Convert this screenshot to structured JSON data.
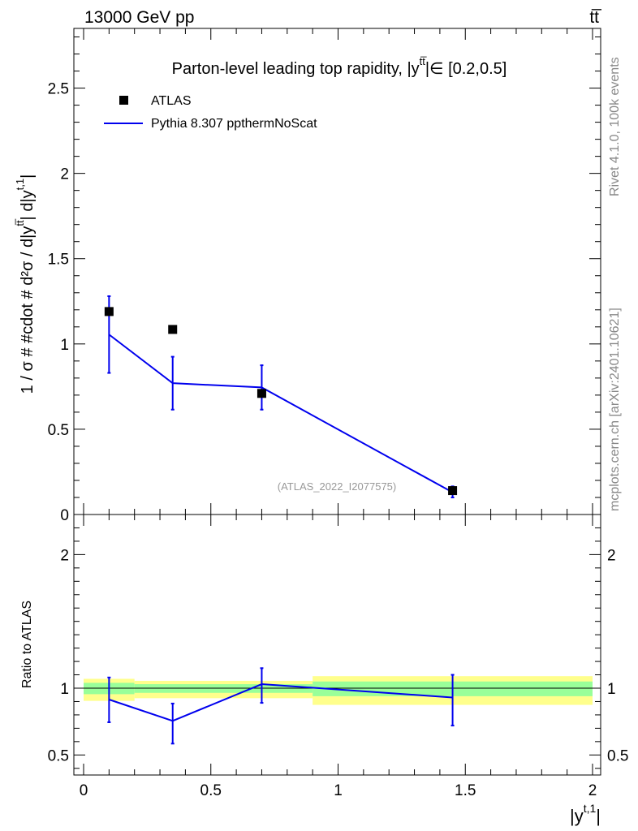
{
  "header": {
    "left_label": "13000 GeV pp",
    "right_label": "tt̅"
  },
  "side_labels": {
    "rivet": "Rivet 4.1.0,  100k events",
    "mcplots": "mcplots.cern.ch [arXiv:2401.10621]"
  },
  "chart_data": [
    {
      "panel": "main",
      "type": "line",
      "title_prefix": "Parton-level leading top rapidity, |y",
      "title_sup": "tt̅",
      "title_suffix": "|∈ [0.2,0.5]",
      "ylabel_main": "1 / σ # #cdot # d²σ / d|y",
      "ylabel_sup1": "tt̅",
      "ylabel_mid": "| d|y",
      "ylabel_sup2": "t,1",
      "ylabel_end": "|",
      "watermark": "(ATLAS_2022_I2077575)",
      "xlim": [
        0,
        2
      ],
      "ylim": [
        0,
        2.85
      ],
      "yticks": [
        {
          "v": 0,
          "label": "0"
        },
        {
          "v": 0.5,
          "label": "0.5"
        },
        {
          "v": 1,
          "label": "1"
        },
        {
          "v": 1.5,
          "label": "1.5"
        },
        {
          "v": 2,
          "label": "2"
        },
        {
          "v": 2.5,
          "label": "2.5"
        }
      ],
      "legend": [
        {
          "name": "ATLAS",
          "style": "marker"
        },
        {
          "name": "Pythia 8.307 ppthermNoScat",
          "style": "line"
        }
      ],
      "series": [
        {
          "name": "ATLAS",
          "x": [
            0.1,
            0.35,
            0.7,
            1.45
          ],
          "values": [
            1.19,
            1.085,
            0.71,
            0.14
          ],
          "color": "#000000"
        },
        {
          "name": "Pythia 8.307 ppthermNoScat",
          "x": [
            0.1,
            0.35,
            0.7,
            1.45
          ],
          "values": [
            1.055,
            0.77,
            0.745,
            0.13
          ],
          "err_low": [
            0.83,
            0.615,
            0.615,
            0.1
          ],
          "err_high": [
            1.28,
            0.925,
            0.875,
            0.165
          ],
          "color": "#0000ee"
        }
      ]
    },
    {
      "panel": "ratio",
      "type": "line",
      "ylabel": "Ratio to ATLAS",
      "xlabel": "|y",
      "xlabel_sup": "t,1",
      "xlabel_end": "|",
      "xlim": [
        0,
        2
      ],
      "ylim": [
        0.35,
        2.3
      ],
      "xticks": [
        {
          "v": 0,
          "label": "0"
        },
        {
          "v": 0.5,
          "label": "0.5"
        },
        {
          "v": 1,
          "label": "1"
        },
        {
          "v": 1.5,
          "label": "1.5"
        },
        {
          "v": 2,
          "label": "2"
        }
      ],
      "yticks": [
        {
          "v": 0.5,
          "label": "0.5"
        },
        {
          "v": 1,
          "label": "1"
        },
        {
          "v": 2,
          "label": "2"
        }
      ],
      "bands": [
        {
          "x0": 0.0,
          "x1": 0.2,
          "yellow": [
            0.905,
            1.07
          ],
          "green": [
            0.955,
            1.04
          ]
        },
        {
          "x0": 0.2,
          "x1": 0.9,
          "yellow": [
            0.925,
            1.055
          ],
          "green": [
            0.965,
            1.03
          ]
        },
        {
          "x0": 0.9,
          "x1": 2.0,
          "yellow": [
            0.875,
            1.09
          ],
          "green": [
            0.94,
            1.05
          ]
        }
      ],
      "series": [
        {
          "name": "Pythia 8.307 ppthermNoScat",
          "x": [
            0.1,
            0.35,
            0.7,
            1.45
          ],
          "values": [
            0.915,
            0.755,
            1.03,
            0.93
          ],
          "err_low": [
            0.745,
            0.585,
            0.89,
            0.72
          ],
          "err_high": [
            1.08,
            0.885,
            1.15,
            1.1
          ],
          "color": "#0000ee"
        }
      ]
    }
  ],
  "colors": {
    "yellow_band": "#ffff8c",
    "green_band": "#99ff99",
    "data": "#000000",
    "mc": "#0000ee",
    "side_text": "#888888",
    "watermark": "#999999"
  }
}
